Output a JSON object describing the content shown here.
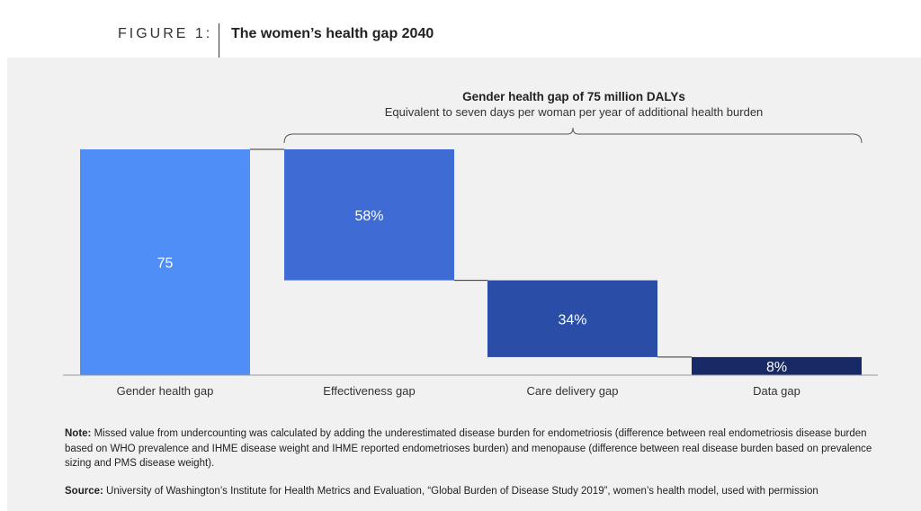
{
  "figure": {
    "label": "FIGURE 1:",
    "title": "The women’s health gap 2040"
  },
  "colors": {
    "panel_bg": "#f1f1f1",
    "gender_gap": "#4f8ef7",
    "effectiveness_gap": "#3f6bd4",
    "care_delivery_gap": "#2a4ea8",
    "data_gap": "#172a66",
    "connector": "#333333",
    "axis": "#999999"
  },
  "chart_data": {
    "type": "bar",
    "subtype": "waterfall",
    "ylim": [
      0,
      75
    ],
    "categories": [
      "Gender health gap",
      "Effectiveness gap",
      "Care delivery gap",
      "Data gap"
    ],
    "bars": [
      {
        "category": "Gender health gap",
        "start": 0,
        "end": 75,
        "label": "75"
      },
      {
        "category": "Effectiveness gap",
        "start": 31.5,
        "end": 75,
        "label": "58%",
        "share": 58
      },
      {
        "category": "Care delivery gap",
        "start": 6,
        "end": 31.5,
        "label": "34%",
        "share": 34
      },
      {
        "category": "Data gap",
        "start": 0,
        "end": 6,
        "label": "8%",
        "share": 8
      }
    ],
    "bracket": {
      "title": "Gender health gap of 75 million DALYs",
      "subtitle": "Equivalent to seven days per woman per year of additional health burden"
    },
    "grid": false,
    "legend": "none"
  },
  "note": {
    "label": "Note:",
    "text": "Missed value from undercounting was calculated by adding the underestimated disease burden for endometriosis (difference between real endometriosis disease burden based on WHO prevalence and IHME disease weight and IHME reported endometrioses burden) and menopause (difference between real disease burden based on prevalence sizing and PMS disease weight)."
  },
  "source": {
    "label": "Source:",
    "text": "University of Washington’s Institute for Health Metrics and Evaluation, “Global Burden of Disease Study 2019”, women’s health model, used with permission"
  }
}
